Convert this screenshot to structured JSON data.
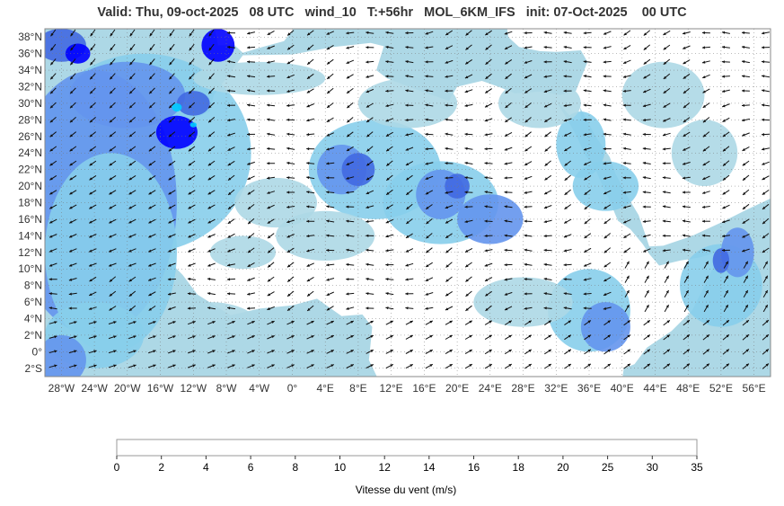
{
  "title": "Valid: Thu, 09-oct-2025   08 UTC   wind_10   T:+56hr   MOL_6KM_IFS   init: 07-Oct-2025    00 UTC",
  "map": {
    "lon_range": [
      -30,
      58
    ],
    "lat_range": [
      -3,
      39
    ],
    "lat_ticks": [
      "38°N",
      "36°N",
      "34°N",
      "32°N",
      "30°N",
      "28°N",
      "26°N",
      "24°N",
      "22°N",
      "20°N",
      "18°N",
      "16°N",
      "14°N",
      "12°N",
      "10°N",
      "8°N",
      "6°N",
      "4°N",
      "2°N",
      "0°",
      "2°S"
    ],
    "lat_values": [
      38,
      36,
      34,
      32,
      30,
      28,
      26,
      24,
      22,
      20,
      18,
      16,
      14,
      12,
      10,
      8,
      6,
      4,
      2,
      0,
      -2
    ],
    "lon_ticks": [
      "28°W",
      "24°W",
      "20°W",
      "16°W",
      "12°W",
      "8°W",
      "4°W",
      "0°",
      "4°E",
      "8°E",
      "12°E",
      "16°E",
      "20°E",
      "24°E",
      "28°E",
      "32°E",
      "36°E",
      "40°E",
      "44°E",
      "48°E",
      "52°E",
      "56°E"
    ],
    "lon_values": [
      -28,
      -24,
      -20,
      -16,
      -12,
      -8,
      -4,
      0,
      4,
      8,
      12,
      16,
      20,
      24,
      28,
      32,
      36,
      40,
      44,
      48,
      52,
      56
    ],
    "land_color": "#ffffff",
    "sea_color": "#add8e6"
  },
  "colorbar": {
    "label": "Vitesse du vent (m/s)",
    "ticks": [
      "0",
      "2",
      "4",
      "6",
      "8",
      "10",
      "12",
      "14",
      "16",
      "18",
      "20",
      "25",
      "30",
      "35"
    ],
    "colors": [
      "#ffffff",
      "#add8e6",
      "#87ceeb",
      "#6495ed",
      "#4169e1",
      "#0000ff",
      "#00ccff",
      "#00ff00",
      "#ffff00",
      "#ffd700",
      "#ffa500",
      "#ff4500",
      "#b22222"
    ]
  }
}
